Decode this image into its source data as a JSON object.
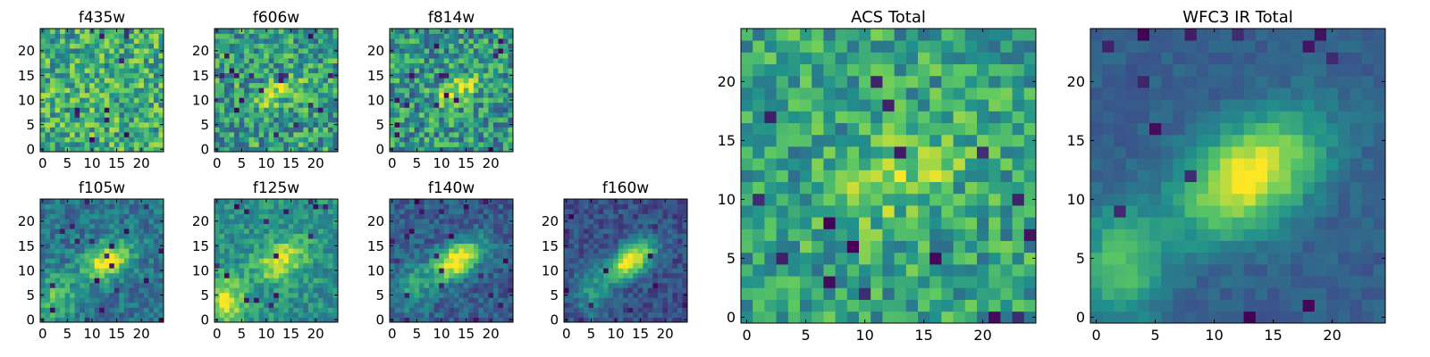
{
  "colormap": [
    "#440154",
    "#3b528b",
    "#21918c",
    "#5ec962",
    "#fde725"
  ],
  "chart_data": [
    {
      "type": "heatmap",
      "title": "f435w",
      "xticks": [
        0,
        5,
        10,
        15,
        20
      ],
      "yticks": [
        0,
        5,
        10,
        15,
        20
      ],
      "xlim": [
        0,
        25
      ],
      "ylim": [
        0,
        25
      ],
      "grid": false,
      "appearance": "noise"
    },
    {
      "type": "heatmap",
      "title": "f606w",
      "xticks": [
        0,
        5,
        10,
        15,
        20
      ],
      "yticks": [
        0,
        5,
        10,
        15,
        20
      ],
      "xlim": [
        0,
        25
      ],
      "ylim": [
        0,
        25
      ],
      "grid": false,
      "appearance": "noisy, faint elongated source near center"
    },
    {
      "type": "heatmap",
      "title": "f814w",
      "xticks": [
        0,
        5,
        10,
        15,
        20
      ],
      "yticks": [
        0,
        5,
        10,
        15,
        20
      ],
      "xlim": [
        0,
        25
      ],
      "ylim": [
        0,
        25
      ],
      "grid": false,
      "appearance": "noisy, elongated source near center"
    },
    {
      "type": "heatmap",
      "title": "f105w",
      "xticks": [
        0,
        5,
        10,
        15,
        20
      ],
      "yticks": [
        0,
        5,
        10,
        15,
        20
      ],
      "xlim": [
        0,
        25
      ],
      "ylim": [
        0,
        25
      ],
      "grid": false,
      "appearance": "bright source near center"
    },
    {
      "type": "heatmap",
      "title": "f125w",
      "xticks": [
        0,
        5,
        10,
        15,
        20
      ],
      "yticks": [
        0,
        5,
        10,
        15,
        20
      ],
      "xlim": [
        0,
        25
      ],
      "ylim": [
        0,
        25
      ],
      "grid": false,
      "appearance": "bright source near center, bright lower-left"
    },
    {
      "type": "heatmap",
      "title": "f140w",
      "xticks": [
        0,
        5,
        10,
        15,
        20
      ],
      "yticks": [
        0,
        5,
        10,
        15,
        20
      ],
      "xlim": [
        0,
        25
      ],
      "ylim": [
        0,
        25
      ],
      "grid": false,
      "appearance": "bright elongated source near center"
    },
    {
      "type": "heatmap",
      "title": "f160w",
      "xticks": [
        0,
        5,
        10,
        15,
        20
      ],
      "yticks": [
        0,
        5,
        10,
        15,
        20
      ],
      "xlim": [
        0,
        25
      ],
      "ylim": [
        0,
        25
      ],
      "grid": false,
      "appearance": "bright elongated source near center"
    },
    {
      "type": "heatmap",
      "title": "ACS Total",
      "xticks": [
        0,
        5,
        10,
        15,
        20
      ],
      "yticks": [
        0,
        5,
        10,
        15,
        20
      ],
      "xlim": [
        0,
        25
      ],
      "ylim": [
        0,
        25
      ],
      "grid": false,
      "appearance": "noisy, faint source near center"
    },
    {
      "type": "heatmap",
      "title": "WFC3 IR Total",
      "xticks": [
        0,
        5,
        10,
        15,
        20
      ],
      "yticks": [
        0,
        5,
        10,
        15,
        20
      ],
      "xlim": [
        0,
        25
      ],
      "ylim": [
        0,
        25
      ],
      "grid": false,
      "appearance": "smooth bright elongated source near center"
    }
  ]
}
